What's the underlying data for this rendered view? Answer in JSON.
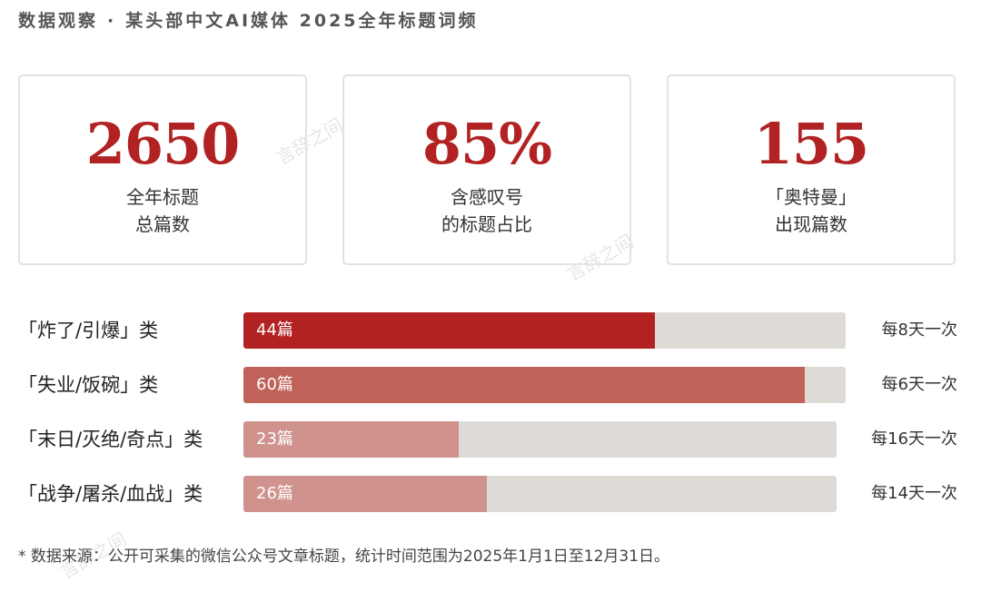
{
  "header": {
    "left": "数据观察",
    "sep": "·",
    "right": "某头部中文AI媒体 2025全年标题词频"
  },
  "watermark": "言辞之间",
  "stats": [
    {
      "value": "2650",
      "label": "全年标题\n总篇数"
    },
    {
      "value": "85%",
      "label": "含感叹号\n的标题占比"
    },
    {
      "value": "155",
      "label": "「奥特曼」\n出现篇数"
    }
  ],
  "chart_data": {
    "type": "bar",
    "categories": [
      "「炸了/引爆」类",
      "「失业/饭碗」类",
      "「末日/灭绝/奇点」类",
      "「战争/屠杀/血战」类"
    ],
    "values": [
      44,
      60,
      23,
      26
    ],
    "value_labels": [
      "44篇",
      "60篇",
      "23篇",
      "26篇"
    ],
    "frequency_labels": [
      "每8天一次",
      "每6天一次",
      "每16天一次",
      "每14天一次"
    ],
    "colors": [
      "#b22222",
      "#c0625a",
      "#cf928d",
      "#cf928d"
    ],
    "track_color": "#dedad6",
    "xlim": [
      0,
      66
    ]
  },
  "footnote": "* 数据来源：公开可采集的微信公众号文章标题，统计时间范围为2025年1月1日至12月31日。"
}
